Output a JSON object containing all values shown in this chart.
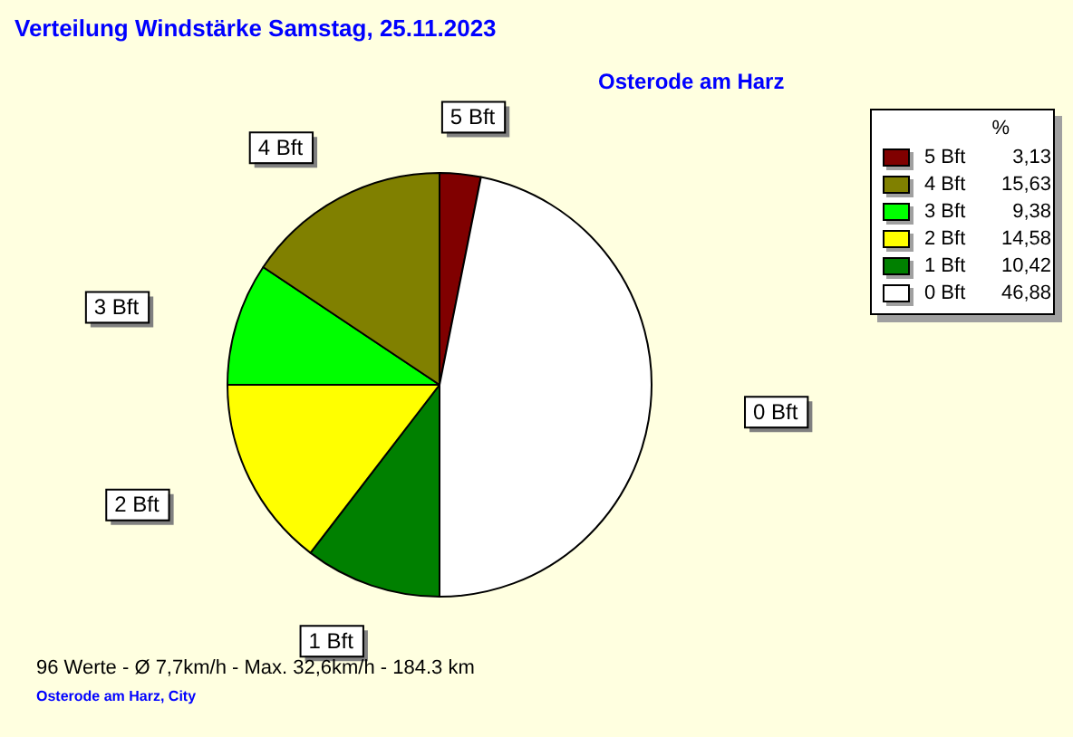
{
  "chart_data": {
    "type": "pie",
    "title": "Verteilung Windstärke  Samstag, 25.11.2023",
    "subtitle": "Osterode am Harz",
    "categories": [
      "5 Bft",
      "0 Bft",
      "1 Bft",
      "2 Bft",
      "3 Bft",
      "4 Bft"
    ],
    "values": [
      3.13,
      46.88,
      10.42,
      14.58,
      9.38,
      15.63
    ],
    "colors": [
      "#800000",
      "#ffffff",
      "#008000",
      "#ffff00",
      "#00ff00",
      "#808000"
    ],
    "value_labels": [
      "3,13",
      "46,88",
      "10,42",
      "14,58",
      "9,38",
      "15,63"
    ],
    "legend_title": "%",
    "legend": "top right",
    "annotations": [
      "96 Werte   -   Ø 7,7km/h  -  Max. 32,6km/h   -   184.3 km",
      "Osterode am Harz, City"
    ]
  }
}
